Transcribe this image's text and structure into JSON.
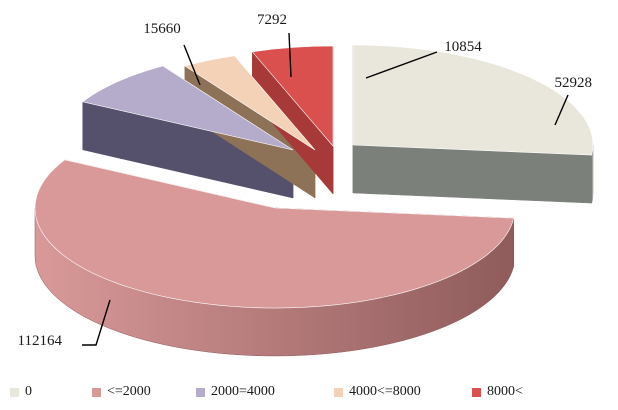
{
  "chart_data": {
    "type": "pie",
    "style": "3d-exploded",
    "legend_position": "bottom",
    "categories": [
      "0",
      "<=2000",
      "2000=4000",
      "4000<=8000",
      "8000<"
    ],
    "values": [
      52928,
      112164,
      15660,
      7292,
      10854
    ],
    "data_labels": [
      "52928",
      "112164",
      "15660",
      "7292",
      "10854"
    ],
    "colors": [
      "#e9e7dc",
      "#d99999",
      "#b5accb",
      "#f3d2b8",
      "#d9504f"
    ],
    "side_colors": [
      "#7c807a",
      "#8f5b5b",
      "#55506b",
      "#8e7258",
      "#a73a38"
    ]
  }
}
